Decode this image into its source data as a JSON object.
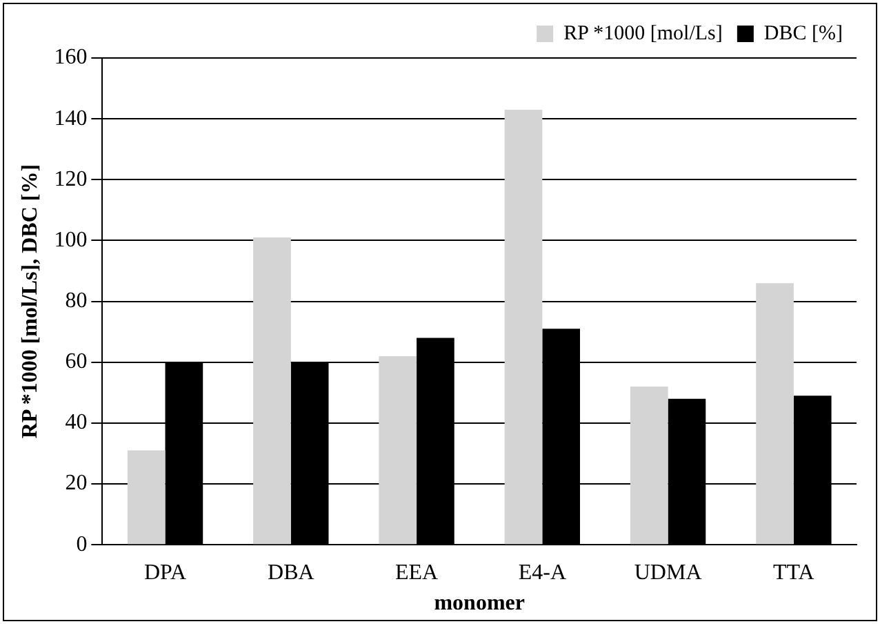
{
  "chart_data": {
    "type": "bar",
    "xlabel": "monomer",
    "ylabel": "RP *1000 [mol/Ls], DBC [%]",
    "categories": [
      "DPA",
      "DBA",
      "EEA",
      "E4-A",
      "UDMA",
      "TTA"
    ],
    "series": [
      {
        "name": "RP *1000 [mol/Ls]",
        "color": "#d4d4d4",
        "values": [
          31,
          101,
          62,
          143,
          52,
          86
        ]
      },
      {
        "name": "DBC [%]",
        "color": "#000000",
        "values": [
          60,
          60,
          68,
          71,
          48,
          49
        ]
      }
    ],
    "ylim": [
      0,
      160
    ],
    "yticks": [
      0,
      20,
      40,
      60,
      80,
      100,
      120,
      140,
      160
    ],
    "grid": "y",
    "legend": "top right"
  }
}
